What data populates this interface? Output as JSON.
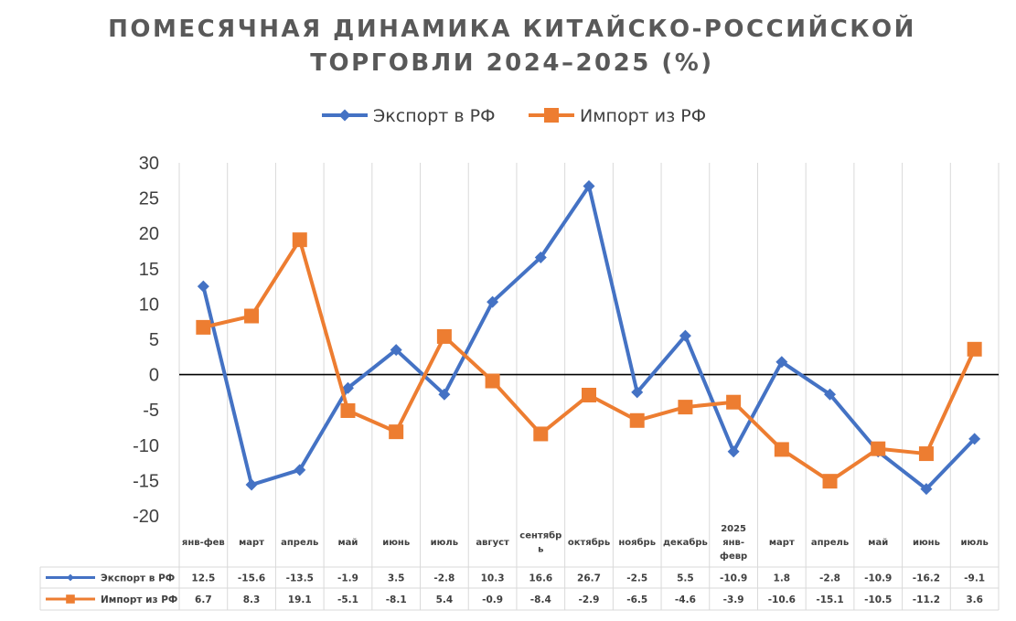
{
  "chart_data": {
    "type": "line",
    "title_lines": [
      "ПОМЕСЯЧНАЯ ДИНАМИКА КИТАЙСКО-РОССИЙСКОЙ",
      "ТОРГОВЛИ 2024–2025 (%)"
    ],
    "categories": [
      [
        "янв-фев"
      ],
      [
        "март"
      ],
      [
        "апрель"
      ],
      [
        "май"
      ],
      [
        "июнь"
      ],
      [
        "июль"
      ],
      [
        "август"
      ],
      [
        "сентябр",
        "ь"
      ],
      [
        "октябрь"
      ],
      [
        "ноябрь"
      ],
      [
        "декабрь"
      ],
      [
        "2025",
        "янв-",
        "февр"
      ],
      [
        "март"
      ],
      [
        "апрель"
      ],
      [
        "май"
      ],
      [
        "июнь"
      ],
      [
        "июль"
      ]
    ],
    "ylim": [
      -20,
      30
    ],
    "yticks": [
      -20,
      -15,
      -10,
      -5,
      0,
      5,
      10,
      15,
      20,
      25,
      30
    ],
    "legend_position": "top",
    "series": [
      {
        "name": "Экспорт в РФ",
        "color": "#4472C4",
        "marker": "diamond",
        "values": [
          12.5,
          -15.6,
          -13.5,
          -1.9,
          3.5,
          -2.8,
          10.3,
          16.6,
          26.7,
          -2.5,
          5.5,
          -10.9,
          1.8,
          -2.8,
          -10.9,
          -16.2,
          -9.1
        ]
      },
      {
        "name": "Импорт из РФ",
        "color": "#ED7D31",
        "marker": "square",
        "values": [
          6.7,
          8.3,
          19.1,
          -5.1,
          -8.1,
          5.4,
          -0.9,
          -8.4,
          -2.9,
          -6.5,
          -4.6,
          -3.9,
          -10.6,
          -15.1,
          -10.5,
          -11.2,
          3.6
        ]
      }
    ]
  }
}
